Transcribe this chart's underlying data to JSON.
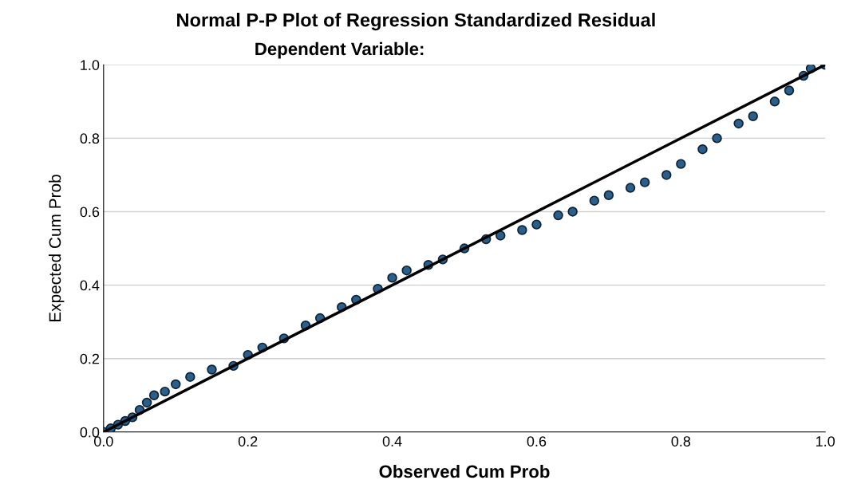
{
  "chart_data": {
    "type": "scatter",
    "title": "Normal P-P Plot of Regression Standardized Residual",
    "subtitle": "Dependent Variable:",
    "xlabel": "Observed Cum Prob",
    "ylabel": "Expected Cum Prob",
    "series": [
      {
        "color": "#2b5f8a",
        "marker": "circle",
        "x": [
          0.0,
          0.01,
          0.02,
          0.03,
          0.04,
          0.05,
          0.06,
          0.07,
          0.085,
          0.1,
          0.12,
          0.15,
          0.18,
          0.2,
          0.22,
          0.25,
          0.28,
          0.3,
          0.33,
          0.35,
          0.38,
          0.4,
          0.42,
          0.45,
          0.47,
          0.5,
          0.53,
          0.55,
          0.58,
          0.6,
          0.63,
          0.65,
          0.68,
          0.7,
          0.73,
          0.75,
          0.78,
          0.8,
          0.83,
          0.85,
          0.88,
          0.9,
          0.93,
          0.95,
          0.97,
          0.98,
          1.0
        ],
        "values": [
          0.0,
          0.01,
          0.02,
          0.03,
          0.04,
          0.06,
          0.08,
          0.1,
          0.11,
          0.13,
          0.15,
          0.17,
          0.18,
          0.21,
          0.23,
          0.255,
          0.29,
          0.31,
          0.34,
          0.36,
          0.39,
          0.42,
          0.44,
          0.455,
          0.47,
          0.5,
          0.525,
          0.535,
          0.55,
          0.565,
          0.59,
          0.6,
          0.63,
          0.645,
          0.665,
          0.68,
          0.7,
          0.73,
          0.77,
          0.8,
          0.84,
          0.86,
          0.9,
          0.93,
          0.97,
          0.99,
          1.0
        ]
      },
      {
        "type": "line",
        "color": "#000000",
        "x": [
          0,
          1
        ],
        "values": [
          0,
          1
        ]
      }
    ],
    "xlim": [
      0,
      1
    ],
    "ylim": [
      0,
      1
    ],
    "xticks": [
      {
        "value": 0,
        "label": "0.0"
      },
      0.2,
      0.4,
      0.6,
      0.8,
      {
        "value": 1,
        "label": "1.0"
      }
    ],
    "yticks": [
      {
        "value": 0,
        "label": "0.0"
      },
      0.2,
      0.4,
      0.6,
      0.8,
      {
        "value": 1,
        "label": "1.0"
      }
    ],
    "grid": "y",
    "legend": false
  }
}
